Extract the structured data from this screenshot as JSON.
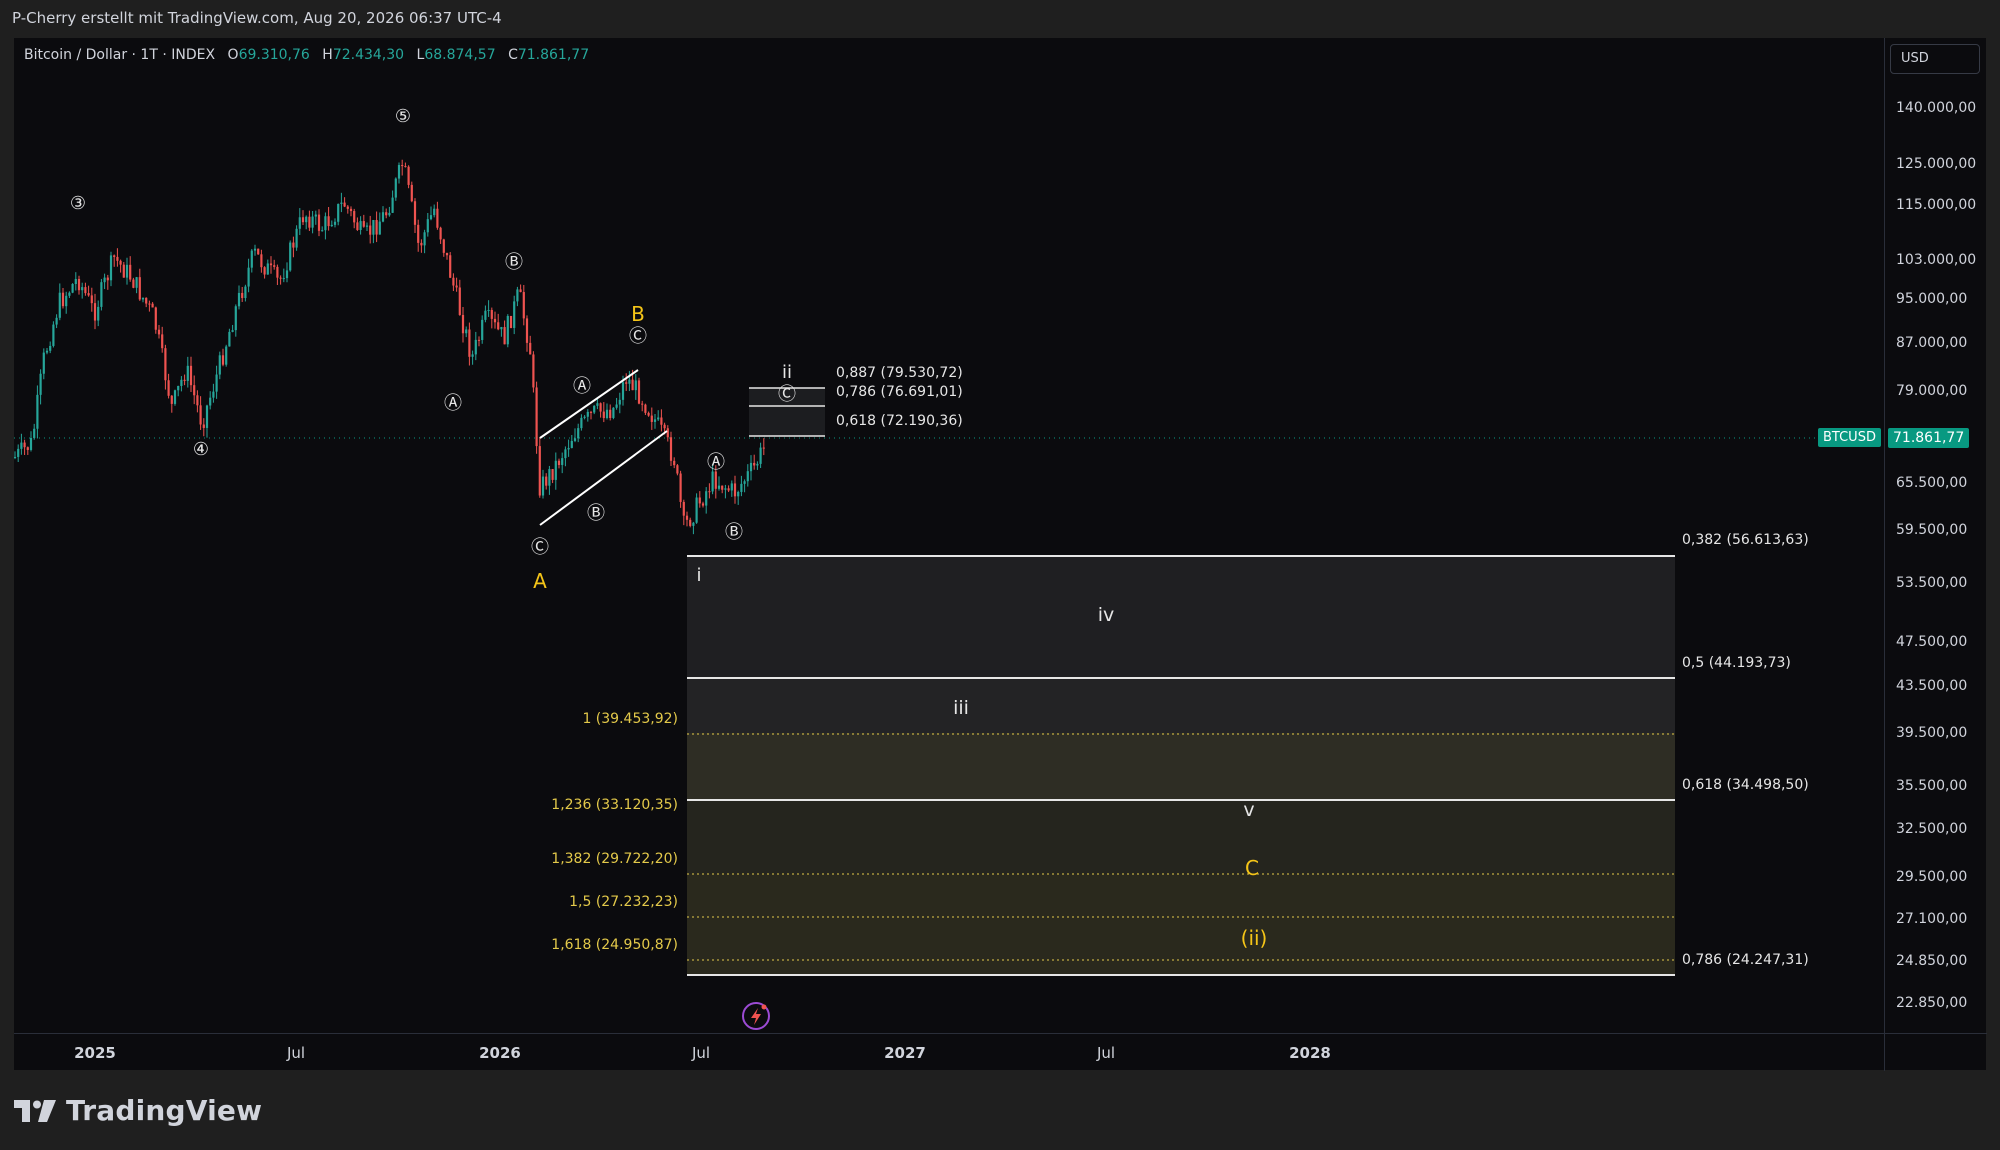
{
  "caption": "P-Cherry erstellt mit TradingView.com, Aug 20, 2026 06:37 UTC-4",
  "legend": {
    "symbol": "Bitcoin / Dollar · 1T · INDEX",
    "open_label": "O",
    "open": "69.310,76",
    "high_label": "H",
    "high": "72.434,30",
    "low_label": "L",
    "low": "68.874,57",
    "close_label": "C",
    "close": "71.861,77"
  },
  "currency_button": "USD",
  "price_axis_ticks": [
    "140.000,00",
    "125.000,00",
    "115.000,00",
    "103.000,00",
    "95.000,00",
    "87.000,00",
    "79.000,00",
    "71.861,77",
    "65.500,00",
    "59.500,00",
    "53.500,00",
    "47.500,00",
    "43.500,00",
    "39.500,00",
    "35.500,00",
    "32.500,00",
    "29.500,00",
    "27.100,00",
    "24.850,00",
    "22.850,00"
  ],
  "last_price": {
    "symbol_tag": "BTCUSD",
    "value": "71.861,77"
  },
  "time_axis_ticks": [
    "2025",
    "Jul",
    "2026",
    "Jul",
    "2027",
    "Jul",
    "2028"
  ],
  "fib_retracement_right": [
    "0,382 (56.613,63)",
    "0,5 (44.193,73)",
    "0,618 (34.498,50)",
    "0,786 (24.247,31)"
  ],
  "fib_extension_left": [
    "1 (39.453,92)",
    "1,236 (33.120,35)",
    "1,382 (29.722,20)",
    "1,5 (27.232,23)",
    "1,618 (24.950,87)"
  ],
  "fib_upper": [
    "0,887 (79.530,72)",
    "0,786 (76.691,01)",
    "0,618 (72.190,36)"
  ],
  "wave_labels": {
    "w3": "③",
    "w4": "④",
    "w5": "⑤",
    "a_circ": "Ⓐ",
    "b_circ": "Ⓑ",
    "c_circ": "Ⓒ",
    "A": "A",
    "B": "B",
    "C": "C",
    "i": "i",
    "ii": "ii",
    "iii": "iii",
    "iv": "iv",
    "v": "v",
    "wave_ii": "(ii)"
  },
  "brand": "TradingView",
  "colors": {
    "up": "#26a69a",
    "down": "#ef5350",
    "yellow": "#f5c518",
    "fib_yellow": "#e3c94a",
    "last_price_bg": "#089981"
  }
}
